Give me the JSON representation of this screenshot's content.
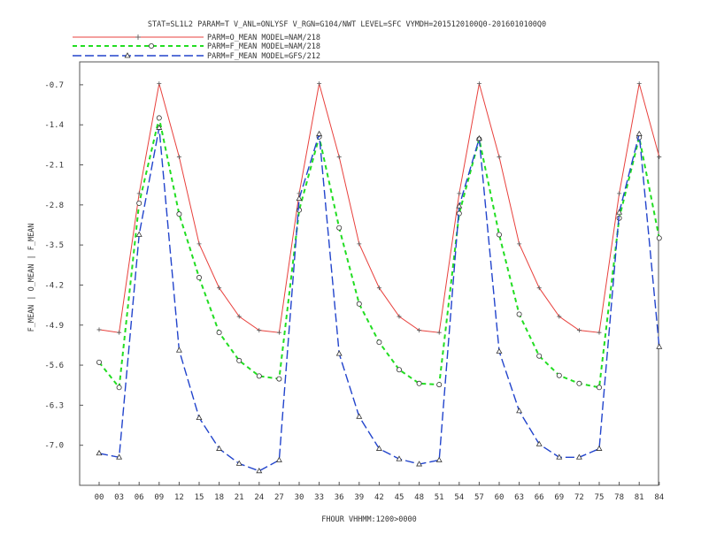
{
  "chart_data": {
    "type": "line",
    "title": "STAT=SL1L2 PARAM=T V_ANL=ONLYSF V_RGN=G104/NWT LEVEL=SFC VYMDH=2015120100Q0-2016010100Q0",
    "xlabel": "FHOUR VHHMM:1200>0000",
    "ylabel": "F_MEAN | O_MEAN | F_MEAN",
    "categories": [
      "00",
      "03",
      "06",
      "09",
      "12",
      "15",
      "18",
      "21",
      "24",
      "27",
      "30",
      "33",
      "36",
      "39",
      "42",
      "45",
      "48",
      "51",
      "54",
      "57",
      "60",
      "63",
      "66",
      "69",
      "72",
      "75",
      "78",
      "81",
      "84"
    ],
    "yticks": [
      "-0.7",
      "-1.4",
      "-2.1",
      "-2.8",
      "-3.5",
      "-4.2",
      "-4.9",
      "-5.6",
      "-6.3",
      "-7.0"
    ],
    "ylim": [
      -7.7,
      -0.3
    ],
    "legend_position": "top-left, above plot",
    "series": [
      {
        "name": "PARM=O_MEAN MODEL=NAM/218",
        "color": "#e8403c",
        "marker": "plus",
        "dash": "solid",
        "values": [
          -4.98,
          -5.03,
          -2.6,
          -0.68,
          -1.96,
          -3.48,
          -4.25,
          -4.75,
          -4.99,
          -5.03,
          -2.6,
          -0.68,
          -1.96,
          -3.48,
          -4.25,
          -4.75,
          -4.99,
          -5.03,
          -2.6,
          -0.68,
          -1.96,
          -3.48,
          -4.25,
          -4.75,
          -4.99,
          -5.03,
          -2.6,
          -0.68,
          -1.96
        ]
      },
      {
        "name": "PARM=F_MEAN MODEL=NAM/218",
        "color": "#22dd22",
        "marker": "circle",
        "dash": "dashed",
        "values": [
          -5.55,
          -5.99,
          -2.77,
          -1.28,
          -2.96,
          -4.07,
          -5.03,
          -5.52,
          -5.79,
          -5.84,
          -2.89,
          -1.61,
          -3.2,
          -4.53,
          -5.2,
          -5.68,
          -5.92,
          -5.94,
          -2.95,
          -1.65,
          -3.32,
          -4.71,
          -5.44,
          -5.78,
          -5.92,
          -5.99,
          -3.03,
          -1.62,
          -3.38
        ]
      },
      {
        "name": "PARM=F_MEAN MODEL=GFS/212",
        "color": "#2244cc",
        "marker": "triangle",
        "dash": "longdash",
        "values": [
          -7.14,
          -7.21,
          -3.32,
          -1.45,
          -5.34,
          -6.52,
          -7.06,
          -7.32,
          -7.45,
          -7.26,
          -2.69,
          -1.56,
          -5.4,
          -6.5,
          -7.06,
          -7.24,
          -7.33,
          -7.26,
          -2.82,
          -1.64,
          -5.36,
          -6.4,
          -6.98,
          -7.21,
          -7.21,
          -7.06,
          -2.93,
          -1.56,
          -5.28
        ]
      }
    ]
  }
}
